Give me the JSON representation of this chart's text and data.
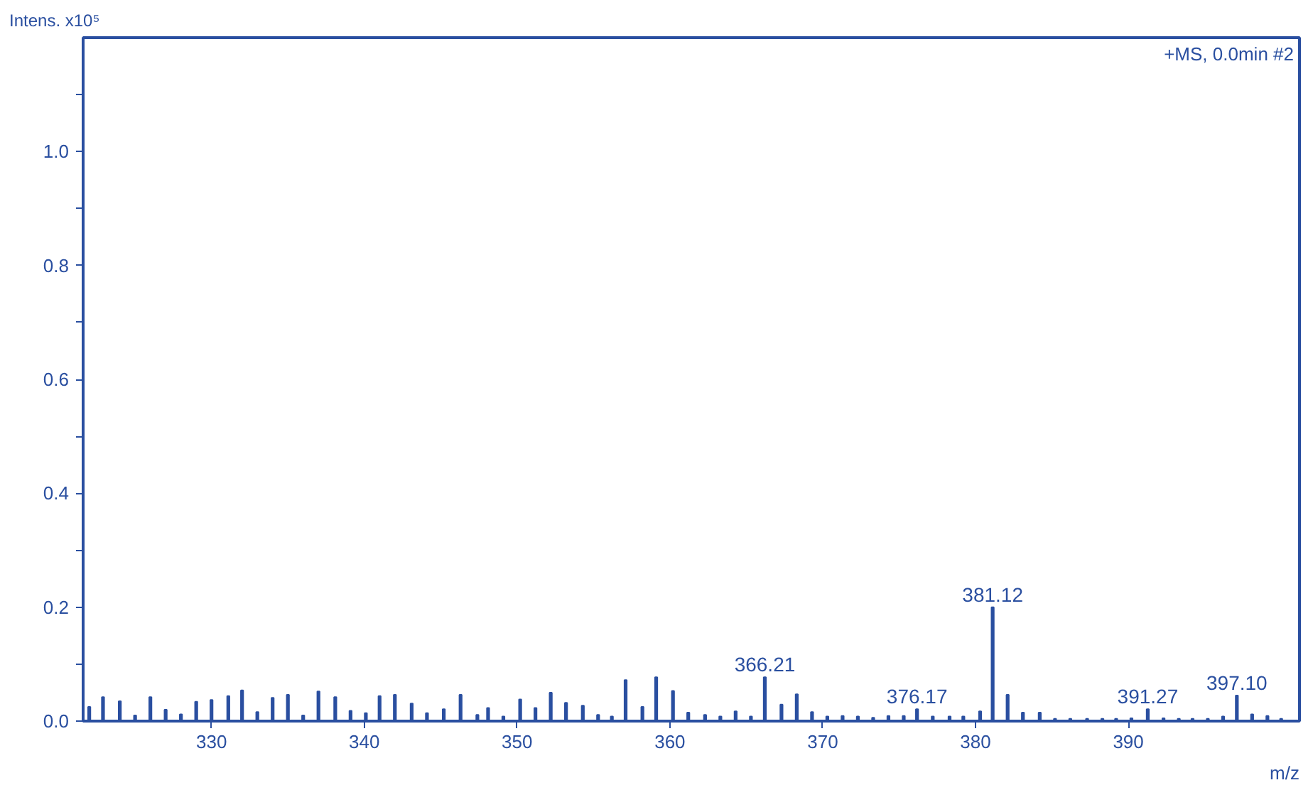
{
  "chart_data": {
    "type": "bar",
    "xlabel": "m/z",
    "ylabel": "Intens. x10⁵",
    "annotations": [
      "+MS, 0.0min #2",
      {
        "text": "366.21",
        "x": 366.21,
        "y": 0.077
      },
      {
        "text": "376.17",
        "x": 376.17,
        "y": 0.021
      },
      {
        "text": "381.12",
        "x": 381.12,
        "y": 0.2
      },
      {
        "text": "391.27",
        "x": 391.27,
        "y": 0.021
      },
      {
        "text": "397.10",
        "x": 397.1,
        "y": 0.045
      }
    ],
    "x": [
      322.0,
      322.9,
      324.0,
      325.0,
      326.0,
      327.0,
      328.0,
      329.0,
      330.0,
      331.1,
      332.0,
      333.0,
      334.0,
      335.0,
      336.0,
      337.0,
      338.1,
      339.1,
      340.1,
      341.0,
      342.0,
      343.1,
      344.1,
      345.2,
      346.3,
      347.4,
      348.1,
      349.1,
      350.2,
      351.2,
      352.2,
      353.2,
      354.3,
      355.3,
      356.2,
      357.1,
      358.2,
      359.1,
      360.2,
      361.2,
      362.3,
      363.3,
      364.3,
      365.3,
      366.21,
      367.3,
      368.3,
      369.3,
      370.3,
      371.3,
      372.3,
      373.3,
      374.3,
      375.3,
      376.17,
      377.2,
      378.3,
      379.2,
      380.3,
      381.12,
      382.1,
      383.1,
      384.2,
      385.2,
      386.2,
      387.3,
      388.3,
      389.2,
      390.2,
      391.27,
      392.3,
      393.3,
      394.2,
      395.2,
      396.2,
      397.1,
      398.1,
      399.1,
      400.0
    ],
    "values": [
      0.025,
      0.042,
      0.035,
      0.01,
      0.042,
      0.02,
      0.012,
      0.034,
      0.037,
      0.044,
      0.054,
      0.016,
      0.041,
      0.046,
      0.01,
      0.052,
      0.042,
      0.018,
      0.014,
      0.044,
      0.046,
      0.031,
      0.014,
      0.021,
      0.046,
      0.011,
      0.023,
      0.008,
      0.038,
      0.023,
      0.05,
      0.032,
      0.027,
      0.011,
      0.008,
      0.072,
      0.025,
      0.077,
      0.053,
      0.015,
      0.011,
      0.008,
      0.017,
      0.008,
      0.077,
      0.029,
      0.047,
      0.016,
      0.008,
      0.009,
      0.008,
      0.006,
      0.009,
      0.009,
      0.021,
      0.008,
      0.008,
      0.008,
      0.017,
      0.2,
      0.046,
      0.015,
      0.015,
      0.004,
      0.004,
      0.004,
      0.004,
      0.004,
      0.005,
      0.021,
      0.005,
      0.004,
      0.004,
      0.004,
      0.008,
      0.045,
      0.012,
      0.009,
      0.004
    ],
    "color": "#2a4fa0",
    "xlim": [
      321.6,
      401.2
    ],
    "xticks": [
      330,
      340,
      350,
      360,
      370,
      380,
      390
    ],
    "ylim": [
      0,
      1.2
    ],
    "yticks": [
      {
        "value": 0,
        "label": "0.0"
      },
      {
        "value": 0.1,
        "label": null
      },
      {
        "value": 0.2,
        "label": "0.2"
      },
      {
        "value": 0.3,
        "label": null
      },
      {
        "value": 0.4,
        "label": "0.4"
      },
      {
        "value": 0.5,
        "label": null
      },
      {
        "value": 0.6,
        "label": "0.6"
      },
      {
        "value": 0.7,
        "label": null
      },
      {
        "value": 0.8,
        "label": "0.8"
      },
      {
        "value": 0.9,
        "label": null
      },
      {
        "value": 1.0,
        "label": "1.0"
      },
      {
        "value": 1.1,
        "label": null
      }
    ],
    "grid": false
  }
}
